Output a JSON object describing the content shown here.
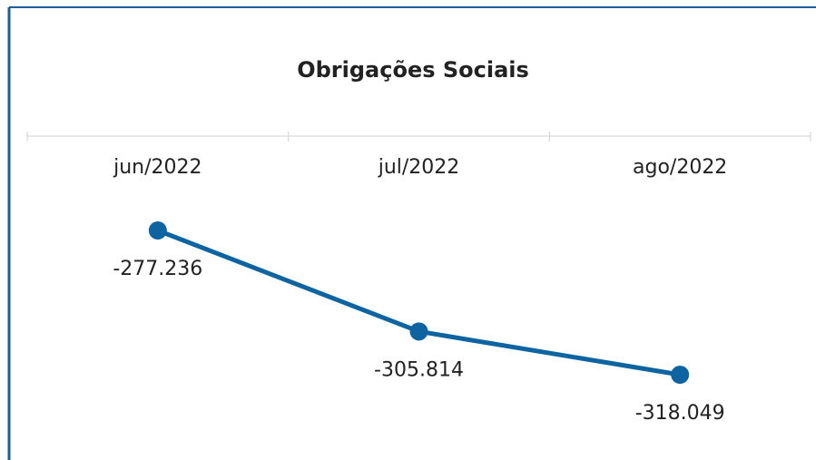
{
  "chart_data": {
    "type": "line",
    "title": "Obrigações Sociais",
    "categories": [
      "jun/2022",
      "jul/2022",
      "ago/2022"
    ],
    "series": [
      {
        "name": "Obrigações Sociais",
        "color": "#0d64a0",
        "values": [
          -277236,
          -305814,
          -318049
        ],
        "value_labels": [
          "-277.236",
          "-305.814",
          "-318.049"
        ]
      }
    ]
  }
}
